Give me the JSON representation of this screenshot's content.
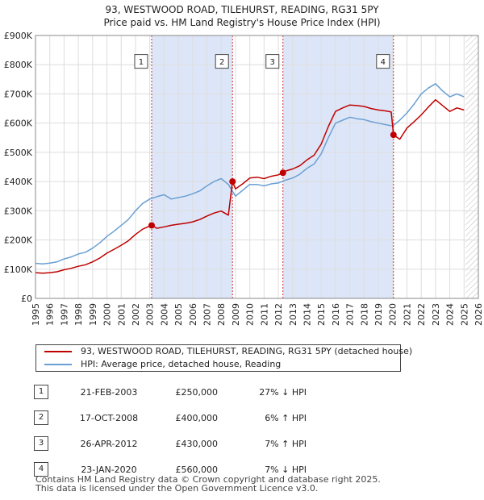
{
  "title_line1": "93, WESTWOOD ROAD, TILEHURST, READING, RG31 5PY",
  "title_line2": "Price paid vs. HM Land Registry's House Price Index (HPI)",
  "colors": {
    "property": "#c00000",
    "hpi": "#6a9fd4",
    "shade": "#dde6f8"
  },
  "legend": {
    "property_label": "93, WESTWOOD ROAD, TILEHURST, READING, RG31 5PY (detached house)",
    "hpi_label": "HPI: Average price, detached house, Reading"
  },
  "transactions": [
    {
      "num": "1",
      "date": "21-FEB-2003",
      "price": "£250,000",
      "hpi": "27% ↓ HPI"
    },
    {
      "num": "2",
      "date": "17-OCT-2008",
      "price": "£400,000",
      "hpi": "6% ↑ HPI"
    },
    {
      "num": "3",
      "date": "26-APR-2012",
      "price": "£430,000",
      "hpi": "7% ↑ HPI"
    },
    {
      "num": "4",
      "date": "23-JAN-2020",
      "price": "£560,000",
      "hpi": "7% ↓ HPI"
    }
  ],
  "footer_line1": "Contains HM Land Registry data © Crown copyright and database right 2025.",
  "footer_line2": "This data is licensed under the Open Government Licence v3.0.",
  "chart_data": {
    "type": "line",
    "title": "Price paid vs. HM Land Registry's House Price Index (HPI)",
    "xlim": [
      1995,
      2026
    ],
    "ylim": [
      0,
      900000
    ],
    "x_ticks": [
      1995,
      1996,
      1997,
      1998,
      1999,
      2000,
      2001,
      2002,
      2003,
      2004,
      2005,
      2006,
      2007,
      2008,
      2009,
      2010,
      2011,
      2012,
      2013,
      2014,
      2015,
      2016,
      2017,
      2018,
      2019,
      2020,
      2021,
      2022,
      2023,
      2024,
      2025,
      2026
    ],
    "y_ticks": [
      {
        "value": 0,
        "label": "£0"
      },
      {
        "value": 100000,
        "label": "£100K"
      },
      {
        "value": 200000,
        "label": "£200K"
      },
      {
        "value": 300000,
        "label": "£300K"
      },
      {
        "value": 400000,
        "label": "£400K"
      },
      {
        "value": 500000,
        "label": "£500K"
      },
      {
        "value": 600000,
        "label": "£600K"
      },
      {
        "value": 700000,
        "label": "£700K"
      },
      {
        "value": 800000,
        "label": "£800K"
      },
      {
        "value": 900000,
        "label": "£900K"
      }
    ],
    "shaded_periods": [
      [
        2003.13,
        2008.79
      ],
      [
        2012.32,
        2020.06
      ]
    ],
    "hatched_after": 2025.1,
    "sales": [
      {
        "label": "1",
        "x": 2003.13,
        "y": 250000
      },
      {
        "label": "2",
        "x": 2008.79,
        "y": 400000
      },
      {
        "label": "3",
        "x": 2012.32,
        "y": 430000
      },
      {
        "label": "4",
        "x": 2020.06,
        "y": 560000
      }
    ],
    "series": [
      {
        "name": "HPI: Average price, detached house, Reading",
        "color": "#6a9fd4",
        "x": [
          1995,
          1995.5,
          1996,
          1996.5,
          1997,
          1997.5,
          1998,
          1998.5,
          1999,
          1999.5,
          2000,
          2000.5,
          2001,
          2001.5,
          2002,
          2002.5,
          2003,
          2003.5,
          2004,
          2004.5,
          2005,
          2005.5,
          2006,
          2006.5,
          2007,
          2007.5,
          2008,
          2008.5,
          2009,
          2009.5,
          2010,
          2010.5,
          2011,
          2011.5,
          2012,
          2012.5,
          2013,
          2013.5,
          2014,
          2014.5,
          2015,
          2015.5,
          2016,
          2016.5,
          2017,
          2017.5,
          2018,
          2018.5,
          2019,
          2019.5,
          2020,
          2020.5,
          2021,
          2021.5,
          2022,
          2022.5,
          2023,
          2023.5,
          2024,
          2024.5,
          2025
        ],
        "values": [
          120000,
          118000,
          121000,
          125000,
          135000,
          142000,
          152000,
          158000,
          172000,
          190000,
          212000,
          230000,
          250000,
          270000,
          300000,
          325000,
          340000,
          348000,
          355000,
          340000,
          345000,
          350000,
          358000,
          368000,
          385000,
          400000,
          410000,
          390000,
          350000,
          370000,
          390000,
          390000,
          385000,
          392000,
          395000,
          405000,
          412000,
          425000,
          445000,
          460000,
          495000,
          550000,
          600000,
          610000,
          620000,
          615000,
          612000,
          605000,
          600000,
          595000,
          590000,
          610000,
          635000,
          665000,
          700000,
          720000,
          735000,
          710000,
          690000,
          700000,
          690000
        ]
      },
      {
        "name": "93, WESTWOOD ROAD, TILEHURST, READING, RG31 5PY (detached house)",
        "color": "#c00000",
        "x": [
          1995,
          1995.5,
          1996,
          1996.5,
          1997,
          1997.5,
          1998,
          1998.5,
          1999,
          1999.5,
          2000,
          2000.5,
          2001,
          2001.5,
          2002,
          2002.5,
          2003,
          2003.13,
          2003.5,
          2004,
          2004.5,
          2005,
          2005.5,
          2006,
          2006.5,
          2007,
          2007.5,
          2008,
          2008.5,
          2008.79,
          2009,
          2009.5,
          2010,
          2010.5,
          2011,
          2011.5,
          2012,
          2012.32,
          2012.5,
          2013,
          2013.5,
          2014,
          2014.5,
          2015,
          2015.5,
          2016,
          2016.5,
          2017,
          2017.5,
          2018,
          2018.5,
          2019,
          2019.5,
          2019.9,
          2020.06,
          2020.5,
          2021,
          2021.5,
          2022,
          2022.5,
          2023,
          2023.5,
          2024,
          2024.5,
          2025
        ],
        "values": [
          88000,
          86000,
          88000,
          91000,
          98000,
          103000,
          110000,
          115000,
          125000,
          138000,
          155000,
          168000,
          182000,
          197000,
          219000,
          237000,
          248000,
          250000,
          240000,
          245000,
          250000,
          254000,
          257000,
          262000,
          270000,
          282000,
          292000,
          299000,
          285000,
          400000,
          375000,
          392000,
          412000,
          415000,
          410000,
          418000,
          423000,
          430000,
          436000,
          443000,
          454000,
          474000,
          490000,
          528000,
          588000,
          640000,
          652000,
          662000,
          660000,
          657000,
          650000,
          645000,
          642000,
          638000,
          560000,
          545000,
          583000,
          605000,
          628000,
          655000,
          680000,
          660000,
          640000,
          652000,
          645000
        ]
      }
    ]
  }
}
